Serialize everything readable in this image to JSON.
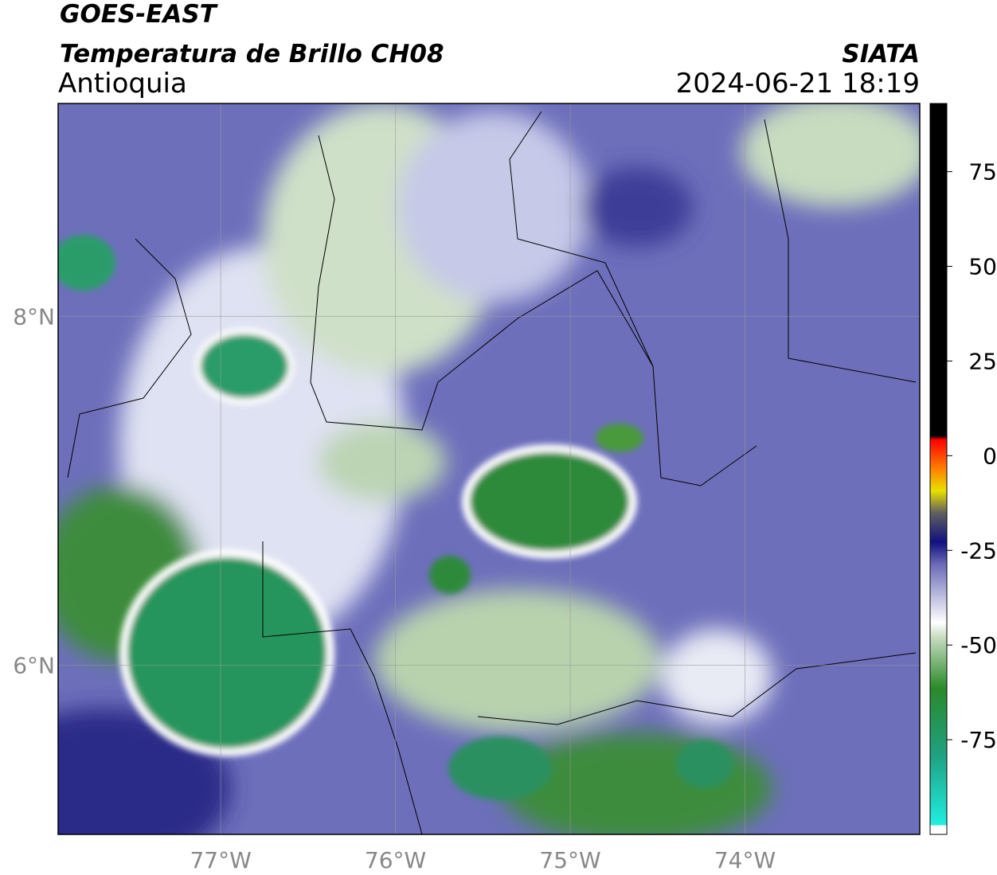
{
  "header": {
    "satellite": "GOES-EAST",
    "title": "Temperatura de Brillo CH08",
    "brand": "SIATA",
    "region": "Antioquia",
    "datetime": "2024-06-21 18:19"
  },
  "map": {
    "xlim": [
      -77.93,
      -73.0
    ],
    "ylim": [
      5.03,
      9.22
    ],
    "xticks": [
      {
        "value": -77,
        "label": "77°W"
      },
      {
        "value": -76,
        "label": "76°W"
      },
      {
        "value": -75,
        "label": "75°W"
      },
      {
        "value": -74,
        "label": "74°W"
      }
    ],
    "yticks": [
      {
        "value": 8,
        "label": "8°N"
      },
      {
        "value": 6,
        "label": "6°N"
      }
    ]
  },
  "colorbar": {
    "lim": [
      -100,
      93
    ],
    "ticks": [
      75,
      50,
      25,
      0,
      -25,
      -50,
      -75
    ]
  }
}
